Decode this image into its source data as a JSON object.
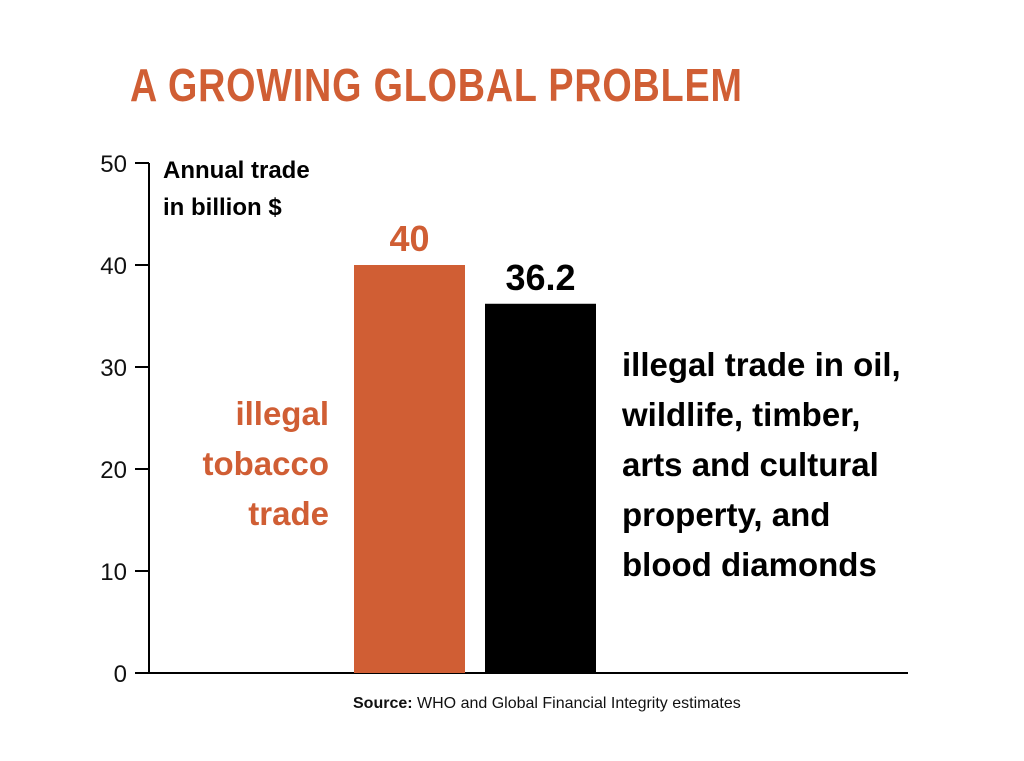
{
  "title": "A GROWING GLOBAL PROBLEM",
  "chart_data": {
    "type": "bar",
    "ylabel": [
      "Annual trade",
      "in billion $"
    ],
    "ylim": [
      0,
      50
    ],
    "yticks": [
      0,
      10,
      20,
      30,
      40,
      50
    ],
    "ytick_labels": [
      "0",
      "10",
      "20",
      "30",
      "40",
      "50"
    ],
    "bars": [
      {
        "value": 40,
        "value_label": "40",
        "color": "#d05e34",
        "label_lines": [
          "illegal",
          "tobacco",
          "trade"
        ],
        "label_side": "left"
      },
      {
        "value": 36.2,
        "value_label": "36.2",
        "color": "#000000",
        "label_lines": [
          "illegal trade in oil,",
          "wildlife, timber,",
          "arts and cultural",
          "property, and",
          "blood diamonds"
        ],
        "label_side": "right"
      }
    ]
  },
  "source": {
    "prefix": "Source:",
    "text": " WHO and Global Financial Integrity estimates"
  }
}
